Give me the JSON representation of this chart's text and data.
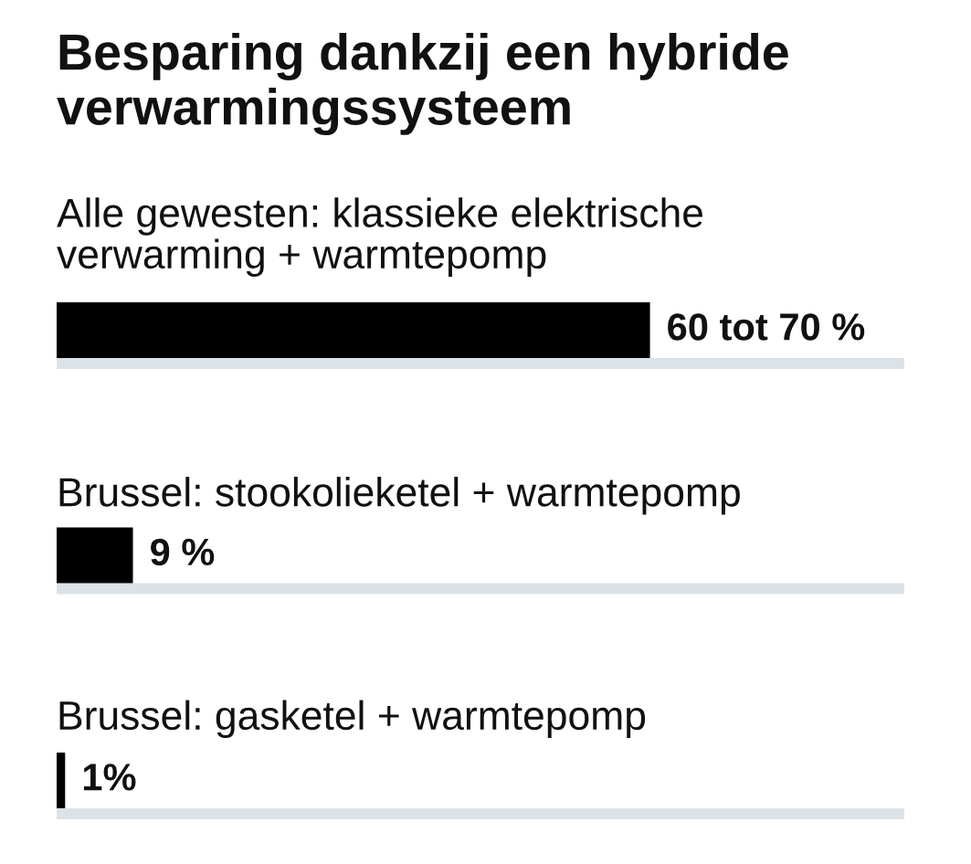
{
  "chart_data": {
    "type": "bar",
    "orientation": "horizontal",
    "title": "Besparing dankzij een hybride\nverwarmingssysteem",
    "categories": [
      "Alle gewesten: klassieke elektrische\nverwarming + warmtepomp",
      "Brussel: stookolieketel + warmtepomp",
      "Brussel: gasketel + warmtepomp"
    ],
    "values": [
      70,
      9,
      1
    ],
    "value_labels": [
      "60 tot 70 %",
      "9 %",
      "1%"
    ],
    "color": "#000000",
    "xlim": [
      0,
      100
    ],
    "tick_labels": "y"
  }
}
